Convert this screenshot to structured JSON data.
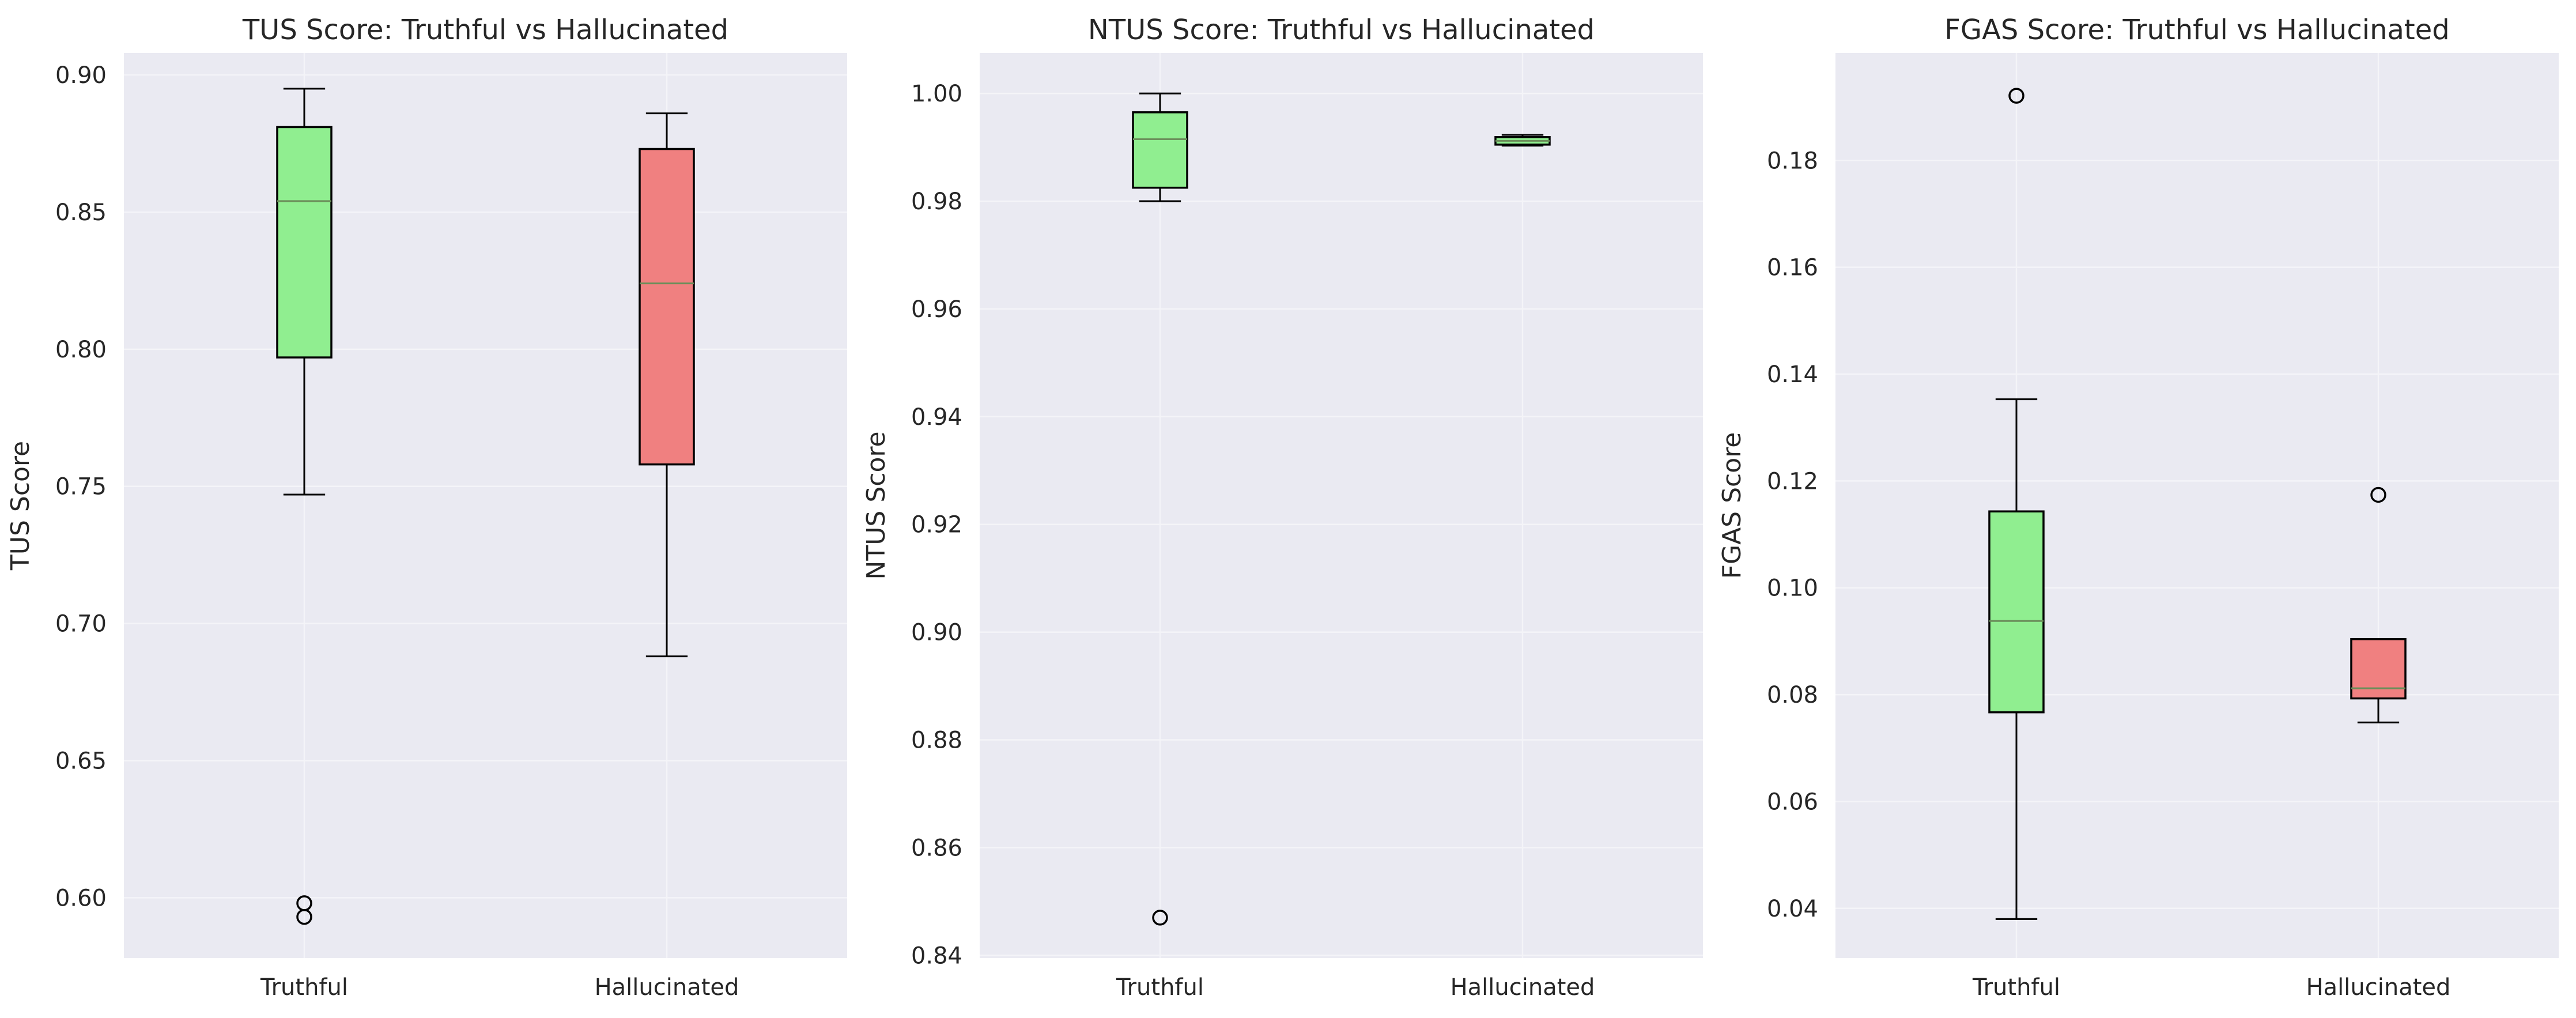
{
  "colors": {
    "axes_bg": "#eaeaf2",
    "grid": "#f4f4f8",
    "truthful": "#90ee90",
    "hallucinated": "#f08080",
    "median": "#6b8e5a",
    "edge": "#000000"
  },
  "chart_data": [
    {
      "type": "box",
      "title": "TUS Score: Truthful vs Hallucinated",
      "xlabel": "",
      "ylabel": "TUS Score",
      "ylim": [
        0.578,
        0.908
      ],
      "yticks": [
        0.6,
        0.65,
        0.7,
        0.75,
        0.8,
        0.85,
        0.9
      ],
      "ytick_labels": [
        "0.60",
        "0.65",
        "0.70",
        "0.75",
        "0.80",
        "0.85",
        "0.90"
      ],
      "grid": true,
      "categories": [
        "Truthful",
        "Hallucinated"
      ],
      "boxes": [
        {
          "name": "Truthful",
          "color": "truthful",
          "whislo": 0.747,
          "q1": 0.797,
          "med": 0.854,
          "q3": 0.881,
          "whishi": 0.895,
          "fliers": [
            0.598,
            0.593
          ]
        },
        {
          "name": "Hallucinated",
          "color": "hallucinated",
          "whislo": 0.688,
          "q1": 0.758,
          "med": 0.824,
          "q3": 0.873,
          "whishi": 0.886,
          "fliers": []
        }
      ]
    },
    {
      "type": "box",
      "title": "NTUS Score: Truthful vs Hallucinated",
      "xlabel": "",
      "ylabel": "NTUS Score",
      "ylim": [
        0.8395,
        1.0075
      ],
      "yticks": [
        0.84,
        0.86,
        0.88,
        0.9,
        0.92,
        0.94,
        0.96,
        0.98,
        1.0
      ],
      "ytick_labels": [
        "0.84",
        "0.86",
        "0.88",
        "0.90",
        "0.92",
        "0.94",
        "0.96",
        "0.98",
        "1.00"
      ],
      "grid": true,
      "categories": [
        "Truthful",
        "Hallucinated"
      ],
      "boxes": [
        {
          "name": "Truthful",
          "color": "truthful",
          "whislo": 0.98,
          "q1": 0.9825,
          "med": 0.9915,
          "q3": 0.9965,
          "whishi": 1.0,
          "fliers": [
            0.847
          ]
        },
        {
          "name": "Hallucinated",
          "color": "truthful",
          "whislo": 0.9903,
          "q1": 0.9905,
          "med": 0.9912,
          "q3": 0.9919,
          "whishi": 0.9923,
          "fliers": []
        }
      ]
    },
    {
      "type": "box",
      "title": "FGAS Score: Truthful vs Hallucinated",
      "xlabel": "",
      "ylabel": "FGAS Score",
      "ylim": [
        0.0307,
        0.2001
      ],
      "yticks": [
        0.04,
        0.06,
        0.08,
        0.1,
        0.12,
        0.14,
        0.16,
        0.18
      ],
      "ytick_labels": [
        "0.04",
        "0.06",
        "0.08",
        "0.10",
        "0.12",
        "0.14",
        "0.16",
        "0.18"
      ],
      "grid": true,
      "categories": [
        "Truthful",
        "Hallucinated"
      ],
      "boxes": [
        {
          "name": "Truthful",
          "color": "truthful",
          "whislo": 0.038,
          "q1": 0.0767,
          "med": 0.0938,
          "q3": 0.1143,
          "whishi": 0.1353,
          "fliers": [
            0.1921
          ]
        },
        {
          "name": "Hallucinated",
          "color": "hallucinated",
          "whislo": 0.0748,
          "q1": 0.0793,
          "med": 0.0812,
          "q3": 0.0904,
          "whishi": 0.0904,
          "fliers": [
            0.1174
          ]
        }
      ]
    }
  ]
}
